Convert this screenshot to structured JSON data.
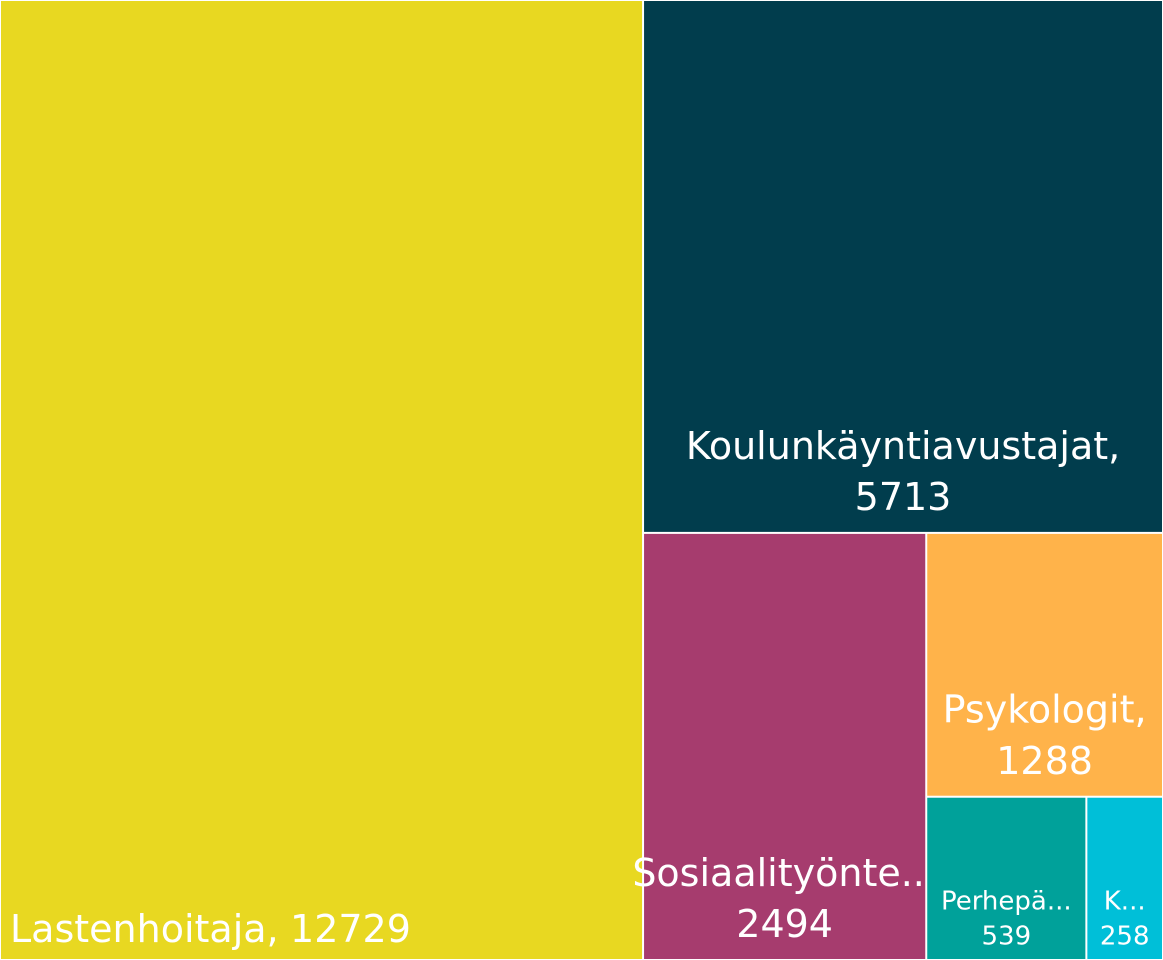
{
  "chart_data": {
    "type": "treemap",
    "categories": [
      "Lastenhoitaja,",
      "Koulunkäyntiavustajat,",
      "Sosiaalityönte...",
      "Psykologit,",
      "Perhepä...",
      "K..."
    ],
    "values": [
      12729,
      5713,
      2494,
      1288,
      539,
      258
    ],
    "colors": [
      "#e8d821",
      "#013d4d",
      "#a63c6e",
      "#ffb34a",
      "#00a19a",
      "#00bfd8"
    ]
  }
}
